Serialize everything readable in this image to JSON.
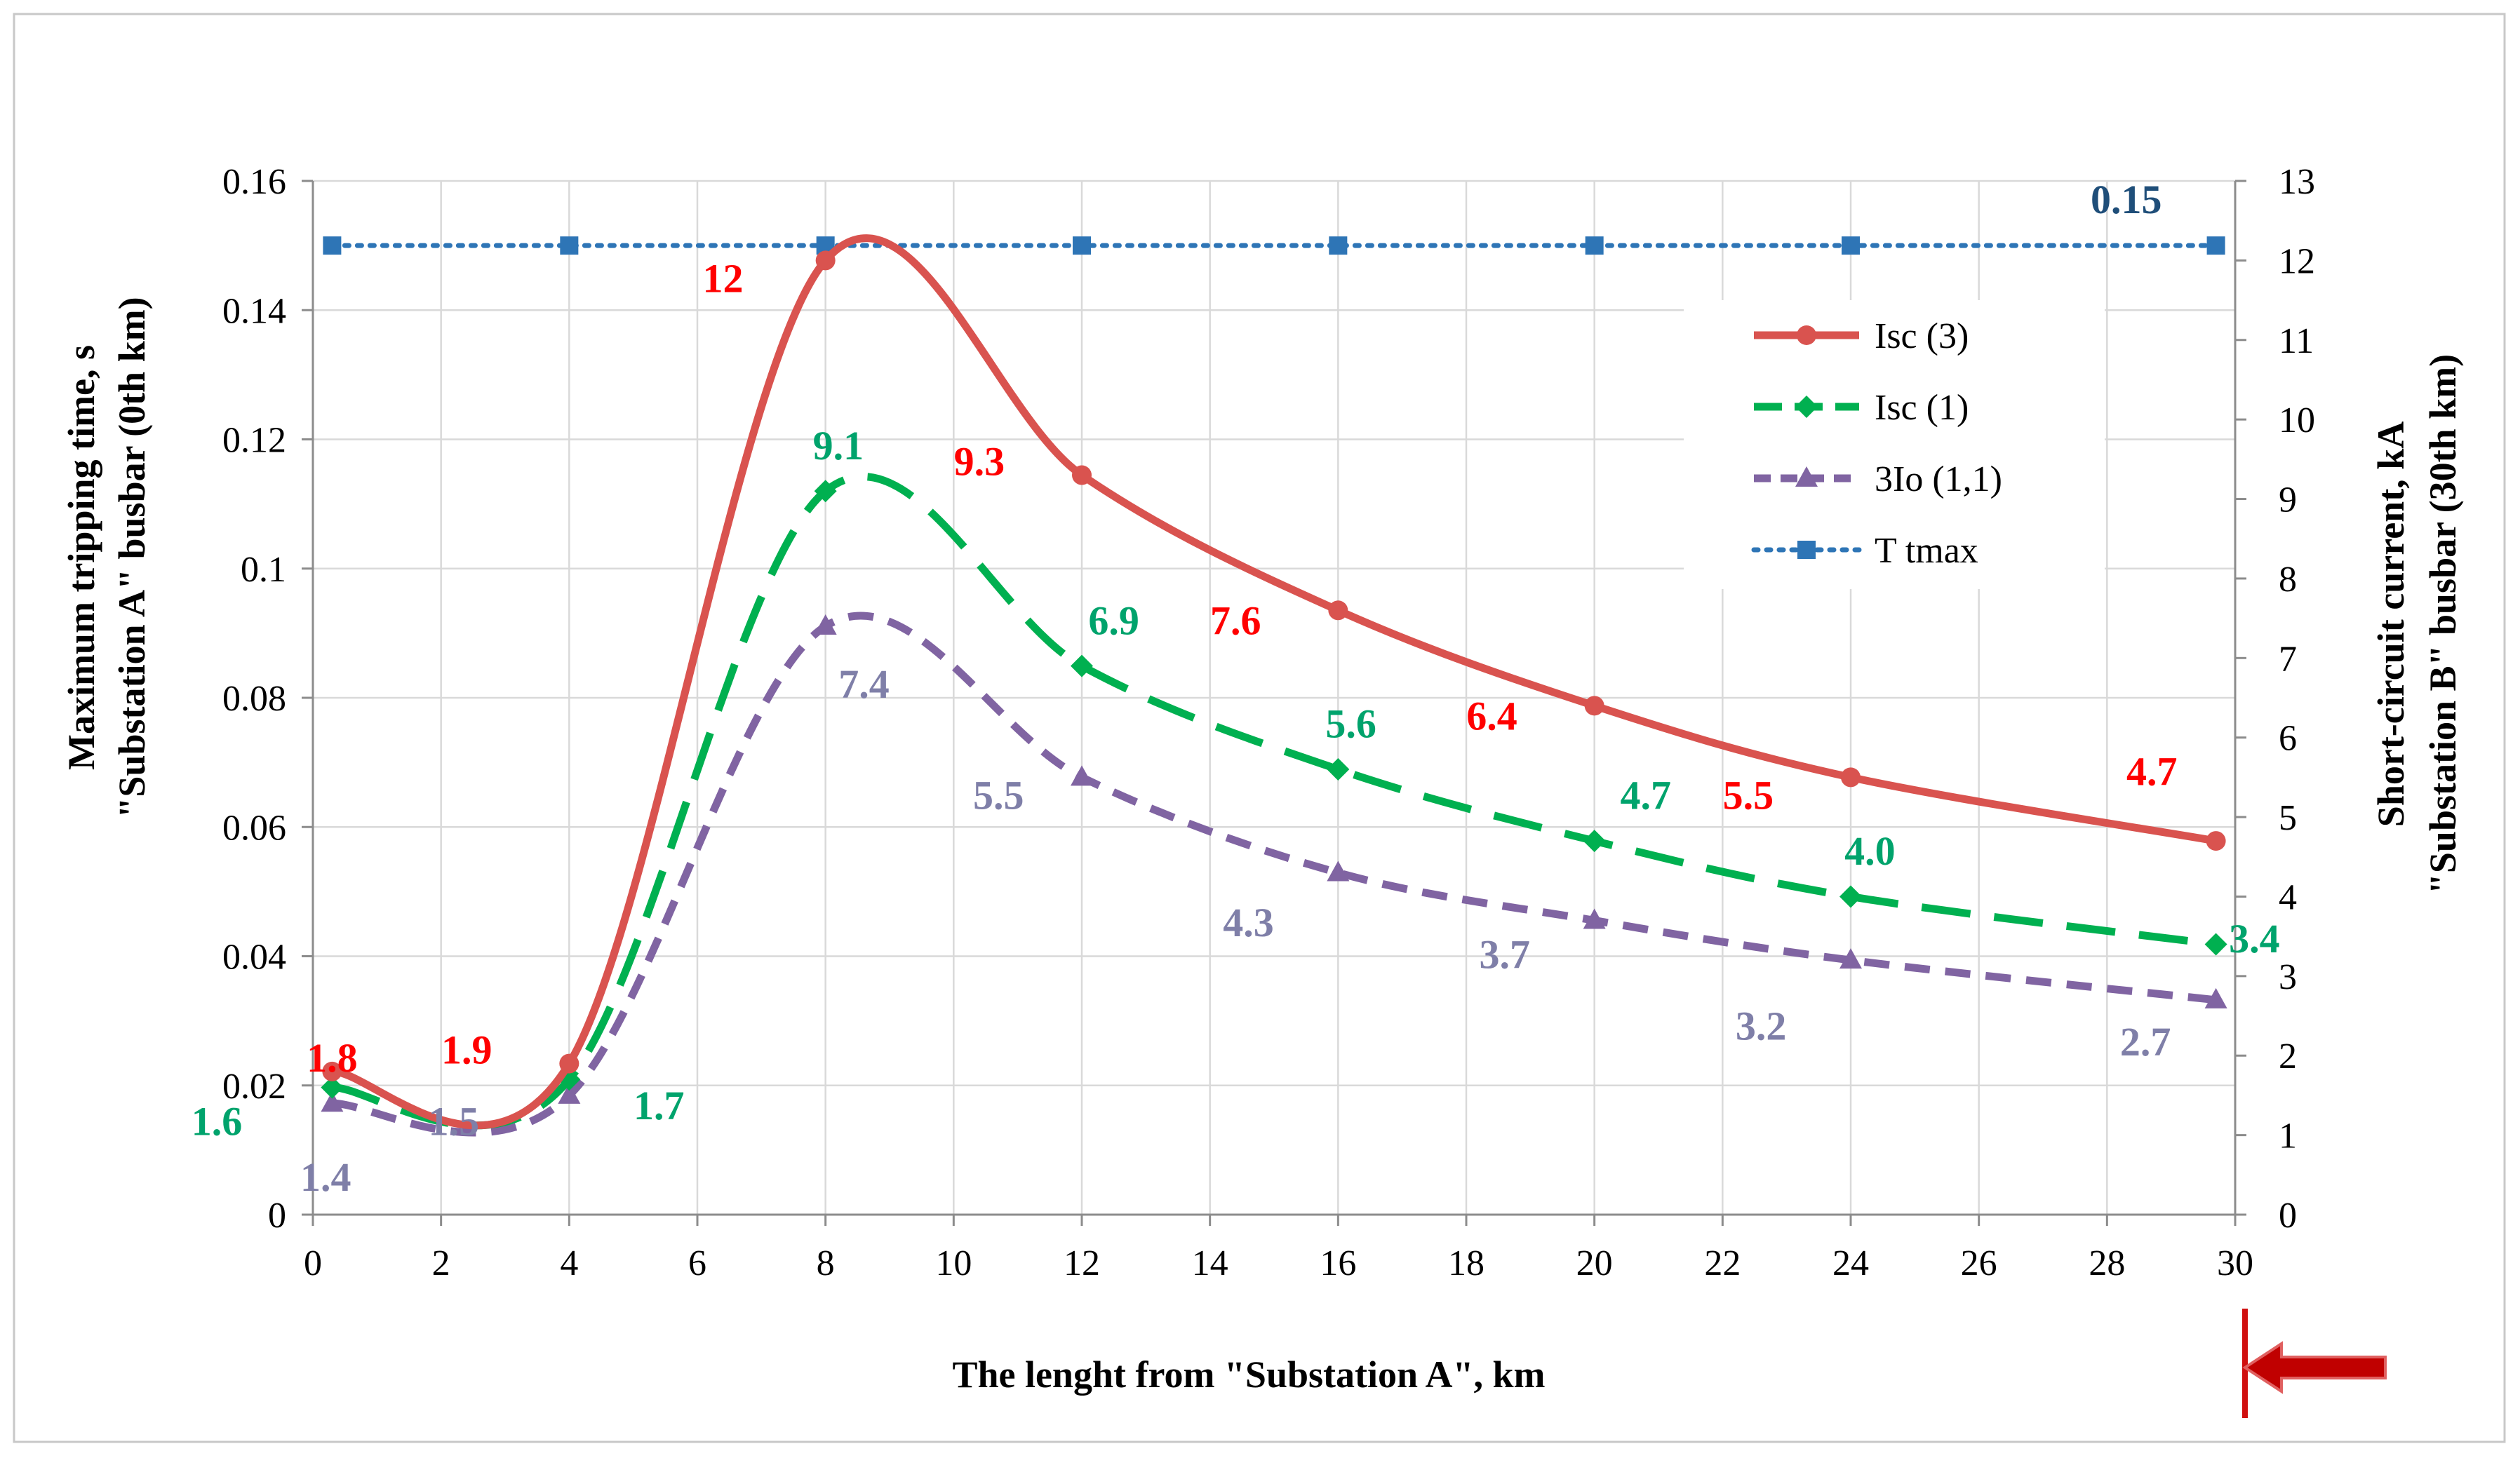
{
  "chart_data": {
    "type": "line",
    "xlabel": "The lenght from \"Substation A\", km",
    "ylabel_left": [
      "Maximum tripping time, s",
      "\"Substation A\" busbar (0th km)"
    ],
    "ylabel_right": [
      "Short-circuit current, kA",
      "\"Substation B\" busbar (30th km)"
    ],
    "xlim": [
      0,
      30
    ],
    "ylim_left": [
      0,
      0.16
    ],
    "ylim_right": [
      0,
      13
    ],
    "x_ticks": [
      "0",
      "2",
      "4",
      "6",
      "8",
      "10",
      "12",
      "14",
      "16",
      "18",
      "20",
      "22",
      "24",
      "26",
      "28",
      "30"
    ],
    "y_left_ticks": [
      "0",
      "0.02",
      "0.04",
      "0.06",
      "0.08",
      "0.1",
      "0.12",
      "0.14",
      "0.16"
    ],
    "y_right_ticks": [
      "0",
      "1",
      "2",
      "3",
      "4",
      "5",
      "6",
      "7",
      "8",
      "9",
      "10",
      "11",
      "12",
      "13"
    ],
    "grid": true,
    "legend_position": "top-right",
    "series": [
      {
        "name": "Isc (3)",
        "axis": "right",
        "color": "#d9534f",
        "style": "solid",
        "marker": "circle",
        "x": [
          0.3,
          4,
          8,
          12,
          16,
          20,
          24,
          29.7
        ],
        "y": [
          1.8,
          1.9,
          12,
          9.3,
          7.6,
          6.4,
          5.5,
          4.7
        ]
      },
      {
        "name": "Isc (1)",
        "axis": "right",
        "color": "#00b050",
        "style": "long-dash",
        "marker": "diamond",
        "x": [
          0.3,
          4,
          8,
          12,
          16,
          20,
          24,
          29.7
        ],
        "y": [
          1.6,
          1.7,
          9.1,
          6.9,
          5.6,
          4.7,
          4.0,
          3.4
        ]
      },
      {
        "name": "3Io (1,1)",
        "axis": "right",
        "color": "#8064a2",
        "style": "dash",
        "marker": "triangle",
        "x": [
          0.3,
          4,
          8,
          12,
          16,
          20,
          24,
          29.7
        ],
        "y": [
          1.4,
          1.5,
          7.4,
          5.5,
          4.3,
          3.7,
          3.2,
          2.7
        ]
      },
      {
        "name": "T tmax",
        "axis": "left",
        "color": "#2e75b6",
        "style": "dotted",
        "marker": "square",
        "x": [
          0.3,
          4,
          8,
          12,
          16,
          20,
          24,
          29.7
        ],
        "y": [
          0.15,
          0.15,
          0.15,
          0.15,
          0.15,
          0.15,
          0.15,
          0.15
        ]
      }
    ],
    "data_labels": [
      {
        "text": "1.8",
        "series": 0,
        "color": "#ff0000",
        "x": 0.3,
        "y": 1.8
      },
      {
        "text": "1.9",
        "series": 0,
        "color": "#ff0000",
        "x": 2.4,
        "y": 1.9
      },
      {
        "text": "12",
        "series": 0,
        "color": "#ff0000",
        "x": 6.4,
        "y": 11.6
      },
      {
        "text": "9.3",
        "series": 0,
        "color": "#ff0000",
        "x": 10.4,
        "y": 9.3
      },
      {
        "text": "7.6",
        "series": 0,
        "color": "#ff0000",
        "x": 14.4,
        "y": 7.3
      },
      {
        "text": "6.4",
        "series": 0,
        "color": "#ff0000",
        "x": 18.4,
        "y": 6.1
      },
      {
        "text": "5.5",
        "series": 0,
        "color": "#ff0000",
        "x": 22.4,
        "y": 5.1
      },
      {
        "text": "4.7",
        "series": 0,
        "color": "#ff0000",
        "x": 28.7,
        "y": 5.4
      },
      {
        "text": "1.6",
        "series": 1,
        "color": "#00a36c",
        "x": -1.5,
        "y": 1.0
      },
      {
        "text": "1.7",
        "series": 1,
        "color": "#00a36c",
        "x": 5.4,
        "y": 1.2
      },
      {
        "text": "9.1",
        "series": 1,
        "color": "#00a36c",
        "x": 8.2,
        "y": 9.5
      },
      {
        "text": "6.9",
        "series": 1,
        "color": "#00a36c",
        "x": 12.5,
        "y": 7.3
      },
      {
        "text": "5.6",
        "series": 1,
        "color": "#00a36c",
        "x": 16.2,
        "y": 6.0
      },
      {
        "text": "4.7",
        "series": 1,
        "color": "#00a36c",
        "x": 20.8,
        "y": 5.1
      },
      {
        "text": "4.0",
        "series": 1,
        "color": "#00a36c",
        "x": 24.3,
        "y": 4.4
      },
      {
        "text": "3.4",
        "series": 1,
        "color": "#00a36c",
        "x": 30.3,
        "y": 3.3
      },
      {
        "text": "1.4",
        "series": 2,
        "color": "#7f7fa8",
        "x": 0.2,
        "y": 0.3
      },
      {
        "text": "1.5",
        "series": 2,
        "color": "#7f7fa8",
        "x": 2.2,
        "y": 1.0
      },
      {
        "text": "7.4",
        "series": 2,
        "color": "#7f7fa8",
        "x": 8.6,
        "y": 6.5
      },
      {
        "text": "5.5",
        "series": 2,
        "color": "#7f7fa8",
        "x": 10.7,
        "y": 5.1
      },
      {
        "text": "4.3",
        "series": 2,
        "color": "#7f7fa8",
        "x": 14.6,
        "y": 3.5
      },
      {
        "text": "3.7",
        "series": 2,
        "color": "#7f7fa8",
        "x": 18.6,
        "y": 3.1
      },
      {
        "text": "3.2",
        "series": 2,
        "color": "#7f7fa8",
        "x": 22.6,
        "y": 2.2
      },
      {
        "text": "2.7",
        "series": 2,
        "color": "#7f7fa8",
        "x": 28.6,
        "y": 2.0
      },
      {
        "text": "0.15",
        "series": 3,
        "color": "#1f4e79",
        "x": 28.3,
        "y": 0.155
      }
    ]
  }
}
